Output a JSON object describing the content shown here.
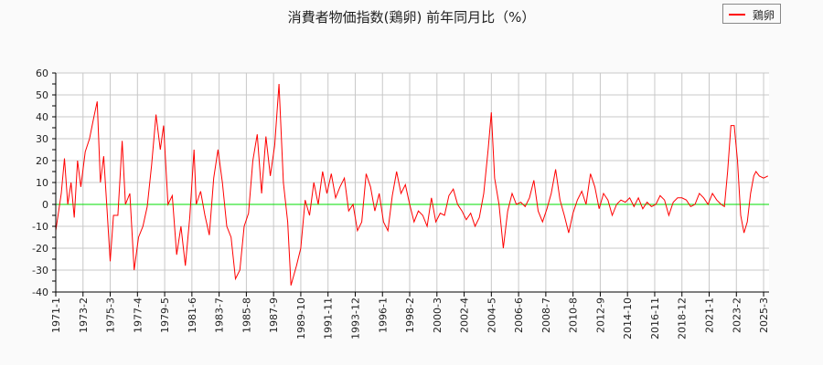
{
  "title": "消費者物価指数(鶏卵) 前年同月比（%）",
  "legend": {
    "items": [
      {
        "label": "鶏卵",
        "color": "#ff0000"
      }
    ]
  },
  "chart_data": {
    "type": "line",
    "title": "消費者物価指数(鶏卵) 前年同月比（%）",
    "xlabel": "",
    "ylabel": "",
    "ylim": [
      -40,
      60
    ],
    "yticks": [
      -40,
      -30,
      -20,
      -10,
      0,
      10,
      20,
      30,
      40,
      50,
      60
    ],
    "xticks": [
      "1971-1",
      "1973-2",
      "1975-3",
      "1977-4",
      "1979-5",
      "1981-6",
      "1983-7",
      "1985-8",
      "1987-9",
      "1989-10",
      "1991-11",
      "1993-12",
      "1996-1",
      "1998-2",
      "2000-3",
      "2002-4",
      "2004-5",
      "2006-6",
      "2008-7",
      "2010-8",
      "2012-9",
      "2014-10",
      "2016-11",
      "2018-12",
      "2021-1",
      "2023-2",
      "2025-3"
    ],
    "grid": true,
    "legend_position": "top-right",
    "zero_line_color": "#00dd00",
    "series": [
      {
        "name": "鶏卵",
        "color": "#ff0000",
        "points": [
          [
            "1971-1",
            -12
          ],
          [
            "1971-6",
            5
          ],
          [
            "1971-9",
            21
          ],
          [
            "1971-12",
            0
          ],
          [
            "1972-3",
            10
          ],
          [
            "1972-6",
            -6
          ],
          [
            "1972-9",
            20
          ],
          [
            "1972-12",
            8
          ],
          [
            "1973-4",
            24
          ],
          [
            "1973-8",
            30
          ],
          [
            "1973-12",
            40
          ],
          [
            "1974-3",
            47
          ],
          [
            "1974-6",
            10
          ],
          [
            "1974-9",
            22
          ],
          [
            "1974-12",
            -2
          ],
          [
            "1975-3",
            -26
          ],
          [
            "1975-6",
            -5
          ],
          [
            "1975-10",
            -5
          ],
          [
            "1976-2",
            29
          ],
          [
            "1976-5",
            0
          ],
          [
            "1976-9",
            5
          ],
          [
            "1977-1",
            -30
          ],
          [
            "1977-5",
            -15
          ],
          [
            "1977-9",
            -10
          ],
          [
            "1978-1",
            -1
          ],
          [
            "1978-5",
            18
          ],
          [
            "1978-9",
            41
          ],
          [
            "1979-1",
            25
          ],
          [
            "1979-4",
            36
          ],
          [
            "1979-8",
            0
          ],
          [
            "1979-12",
            4
          ],
          [
            "1980-4",
            -23
          ],
          [
            "1980-8",
            -10
          ],
          [
            "1980-12",
            -28
          ],
          [
            "1981-4",
            -6
          ],
          [
            "1981-8",
            25
          ],
          [
            "1981-10",
            0
          ],
          [
            "1982-2",
            6
          ],
          [
            "1982-6",
            -5
          ],
          [
            "1982-10",
            -14
          ],
          [
            "1983-2",
            12
          ],
          [
            "1983-6",
            25
          ],
          [
            "1983-10",
            10
          ],
          [
            "1984-2",
            -10
          ],
          [
            "1984-6",
            -15
          ],
          [
            "1984-10",
            -34
          ],
          [
            "1985-2",
            -30
          ],
          [
            "1985-6",
            -10
          ],
          [
            "1985-10",
            -4
          ],
          [
            "1986-2",
            20
          ],
          [
            "1986-6",
            32
          ],
          [
            "1986-10",
            5
          ],
          [
            "1987-2",
            31
          ],
          [
            "1987-6",
            13
          ],
          [
            "1987-10",
            27
          ],
          [
            "1988-2",
            55
          ],
          [
            "1988-6",
            10
          ],
          [
            "1988-10",
            -8
          ],
          [
            "1989-1",
            -37
          ],
          [
            "1989-6",
            -28
          ],
          [
            "1989-10",
            -20
          ],
          [
            "1990-2",
            2
          ],
          [
            "1990-6",
            -5
          ],
          [
            "1990-10",
            10
          ],
          [
            "1991-2",
            0
          ],
          [
            "1991-6",
            15
          ],
          [
            "1991-10",
            5
          ],
          [
            "1992-2",
            14
          ],
          [
            "1992-6",
            3
          ],
          [
            "1992-10",
            8
          ],
          [
            "1993-2",
            12
          ],
          [
            "1993-6",
            -3
          ],
          [
            "1993-10",
            0
          ],
          [
            "1994-2",
            -12
          ],
          [
            "1994-6",
            -8
          ],
          [
            "1994-10",
            14
          ],
          [
            "1995-2",
            8
          ],
          [
            "1995-6",
            -3
          ],
          [
            "1995-10",
            5
          ],
          [
            "1996-2",
            -8
          ],
          [
            "1996-6",
            -12
          ],
          [
            "1996-10",
            4
          ],
          [
            "1997-2",
            15
          ],
          [
            "1997-6",
            5
          ],
          [
            "1997-10",
            9
          ],
          [
            "1998-2",
            0
          ],
          [
            "1998-6",
            -8
          ],
          [
            "1998-10",
            -3
          ],
          [
            "1999-2",
            -5
          ],
          [
            "1999-6",
            -10
          ],
          [
            "1999-10",
            3
          ],
          [
            "2000-2",
            -8
          ],
          [
            "2000-6",
            -4
          ],
          [
            "2000-10",
            -5
          ],
          [
            "2001-2",
            4
          ],
          [
            "2001-6",
            7
          ],
          [
            "2001-10",
            0
          ],
          [
            "2002-2",
            -3
          ],
          [
            "2002-6",
            -7
          ],
          [
            "2002-10",
            -4
          ],
          [
            "2003-2",
            -10
          ],
          [
            "2003-6",
            -6
          ],
          [
            "2003-10",
            5
          ],
          [
            "2004-2",
            25
          ],
          [
            "2004-5",
            42
          ],
          [
            "2004-8",
            12
          ],
          [
            "2004-12",
            0
          ],
          [
            "2005-4",
            -20
          ],
          [
            "2005-8",
            -3
          ],
          [
            "2005-12",
            5
          ],
          [
            "2006-4",
            0
          ],
          [
            "2006-8",
            1
          ],
          [
            "2006-12",
            -1
          ],
          [
            "2007-4",
            3
          ],
          [
            "2007-8",
            11
          ],
          [
            "2007-12",
            -3
          ],
          [
            "2008-4",
            -8
          ],
          [
            "2008-8",
            -2
          ],
          [
            "2008-12",
            5
          ],
          [
            "2009-4",
            16
          ],
          [
            "2009-8",
            2
          ],
          [
            "2009-12",
            -5
          ],
          [
            "2010-4",
            -13
          ],
          [
            "2010-8",
            -4
          ],
          [
            "2010-12",
            2
          ],
          [
            "2011-4",
            6
          ],
          [
            "2011-8",
            0
          ],
          [
            "2011-12",
            14
          ],
          [
            "2012-4",
            8
          ],
          [
            "2012-8",
            -2
          ],
          [
            "2012-12",
            5
          ],
          [
            "2013-4",
            2
          ],
          [
            "2013-8",
            -5
          ],
          [
            "2013-12",
            0
          ],
          [
            "2014-4",
            2
          ],
          [
            "2014-8",
            1
          ],
          [
            "2014-12",
            3
          ],
          [
            "2015-4",
            -1
          ],
          [
            "2015-8",
            3
          ],
          [
            "2015-12",
            -2
          ],
          [
            "2016-4",
            1
          ],
          [
            "2016-8",
            -1
          ],
          [
            "2016-12",
            0
          ],
          [
            "2017-4",
            4
          ],
          [
            "2017-8",
            2
          ],
          [
            "2017-12",
            -5
          ],
          [
            "2018-4",
            1
          ],
          [
            "2018-8",
            3
          ],
          [
            "2018-12",
            3
          ],
          [
            "2019-4",
            2
          ],
          [
            "2019-8",
            -1
          ],
          [
            "2019-12",
            0
          ],
          [
            "2020-4",
            5
          ],
          [
            "2020-8",
            3
          ],
          [
            "2020-12",
            0
          ],
          [
            "2021-4",
            5
          ],
          [
            "2021-8",
            2
          ],
          [
            "2021-12",
            0
          ],
          [
            "2022-3",
            -1
          ],
          [
            "2022-6",
            15
          ],
          [
            "2022-9",
            36
          ],
          [
            "2022-12",
            36
          ],
          [
            "2023-3",
            20
          ],
          [
            "2023-6",
            -5
          ],
          [
            "2023-9",
            -13
          ],
          [
            "2023-12",
            -8
          ],
          [
            "2024-3",
            5
          ],
          [
            "2024-6",
            13
          ],
          [
            "2024-8",
            15
          ],
          [
            "2024-11",
            13
          ],
          [
            "2025-3",
            12
          ],
          [
            "2025-7",
            13
          ]
        ]
      }
    ]
  }
}
